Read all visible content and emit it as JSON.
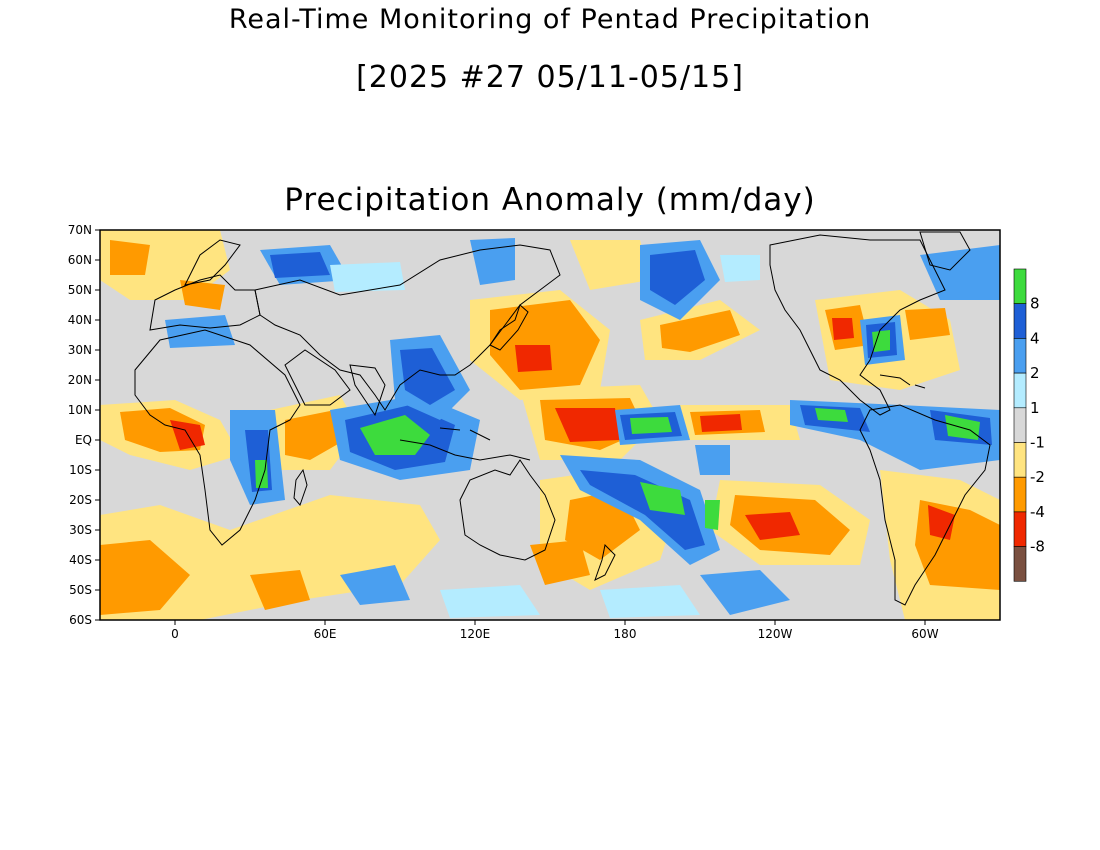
{
  "title": "Real-Time Monitoring of Pentad Precipitation",
  "period": "[2025 #27 05/11-05/15]",
  "panel_title": "Precipitation Anomaly (mm/day)",
  "lat_labels": [
    "70N",
    "60N",
    "50N",
    "40N",
    "30N",
    "20N",
    "10N",
    "EQ",
    "10S",
    "20S",
    "30S",
    "40S",
    "50S",
    "60S"
  ],
  "lon_labels": [
    "0",
    "60E",
    "120E",
    "180",
    "120W",
    "60W"
  ],
  "colorbar": {
    "labels": [
      "8",
      "4",
      "2",
      "1",
      "-1",
      "-2",
      "-4",
      "-8"
    ],
    "colors": [
      "#3ddb3d",
      "#1e5fd6",
      "#4a9ff0",
      "#b4ecff",
      "#d8d8d8",
      "#ffe480",
      "#ff9a00",
      "#f02800",
      "#7a5040"
    ]
  },
  "map_background": "#d8d8d8",
  "coastline_color": "#000000"
}
